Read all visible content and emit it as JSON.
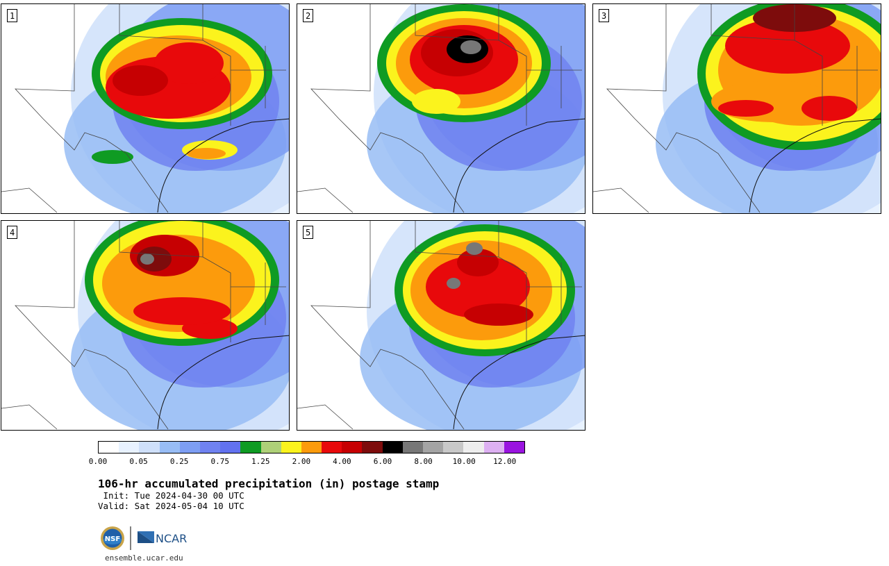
{
  "panels": [
    {
      "label": "1",
      "scenario": "broad-central"
    },
    {
      "label": "2",
      "scenario": "north-core"
    },
    {
      "label": "3",
      "scenario": "northeast-band"
    },
    {
      "label": "4",
      "scenario": "northwest-core"
    },
    {
      "label": "5",
      "scenario": "central-core"
    }
  ],
  "colorbar": {
    "colors": [
      "#ffffff",
      "#e8f2ff",
      "#cfe0fa",
      "#98bdf5",
      "#7d9ef3",
      "#7082f0",
      "#6272ef",
      "#0f9b23",
      "#aed078",
      "#fbf31d",
      "#fc9b0c",
      "#e8090b",
      "#c60002",
      "#7d0c0c",
      "#000000",
      "#777777",
      "#a4a4a4",
      "#c8c8c8",
      "#eeeeee",
      "#ddb0f2",
      "#9a14e0"
    ],
    "tick_labels": [
      "0.00",
      "0.05",
      "0.25",
      "0.75",
      "1.25",
      "2.00",
      "4.00",
      "6.00",
      "8.00",
      "10.00",
      "12.00"
    ]
  },
  "title": "106-hr accumulated precipitation (in) postage stamp",
  "init": " Init: Tue 2024-04-30 00 UTC",
  "valid": "Valid: Sat 2024-05-04 10 UTC",
  "logos": {
    "nsf": "NSF",
    "ncar": "NCAR"
  },
  "site": "ensemble.ucar.edu"
}
